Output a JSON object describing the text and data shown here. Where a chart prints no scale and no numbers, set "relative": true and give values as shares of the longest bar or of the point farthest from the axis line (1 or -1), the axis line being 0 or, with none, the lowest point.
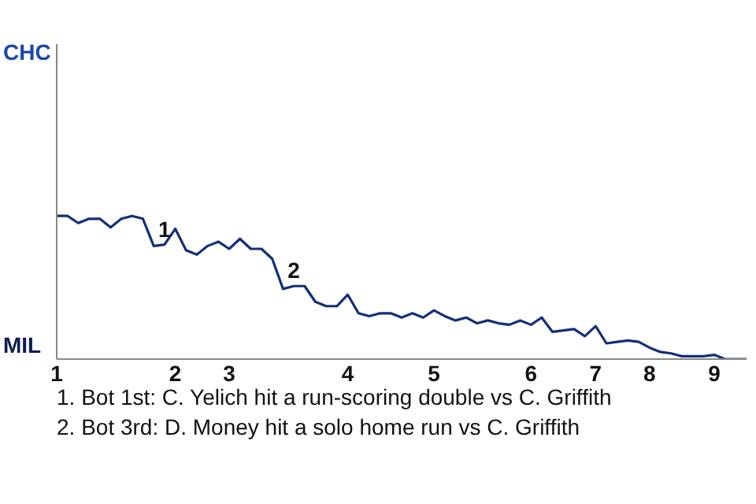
{
  "chart_data": {
    "type": "line",
    "relative": true,
    "categories": [
      "1",
      null,
      null,
      null,
      null,
      null,
      null,
      null,
      null,
      null,
      null,
      "2",
      null,
      null,
      null,
      null,
      "3",
      null,
      null,
      null,
      null,
      null,
      null,
      null,
      null,
      null,
      null,
      "4",
      null,
      null,
      null,
      null,
      null,
      null,
      null,
      "5",
      null,
      null,
      null,
      null,
      null,
      null,
      null,
      null,
      "6",
      null,
      null,
      null,
      null,
      null,
      "7",
      null,
      null,
      null,
      null,
      "8",
      null,
      null,
      null,
      null,
      null,
      "9",
      null,
      null,
      null
    ],
    "series": [
      {
        "color": "#12307a",
        "values": [
          1,
          1,
          0.95,
          0.98,
          0.98,
          0.92,
          0.98,
          1,
          0.98,
          0.79,
          0.8,
          0.91,
          0.76,
          0.73,
          0.79,
          0.82,
          0.77,
          0.84,
          0.77,
          0.77,
          0.7,
          0.49,
          0.51,
          0.51,
          0.4,
          0.37,
          0.37,
          0.45,
          0.32,
          0.3,
          0.32,
          0.32,
          0.29,
          0.32,
          0.29,
          0.34,
          0.3,
          0.27,
          0.29,
          0.25,
          0.27,
          0.25,
          0.24,
          0.27,
          0.24,
          0.29,
          0.19,
          0.2,
          0.21,
          0.16,
          0.23,
          0.11,
          0.12,
          0.13,
          0.12,
          0.08,
          0.05,
          0.04,
          0.02,
          0.02,
          0.02,
          0.03,
          0,
          0,
          0
        ]
      }
    ],
    "marker": "none",
    "line_style": "solid",
    "legend": false,
    "annotations": [
      {
        "text": "1",
        "y": 0.8
      },
      {
        "text": "2",
        "y": 0.51
      },
      "CHC",
      "MIL",
      "1. Bot 1st: C. Yelich hit a run-scoring double vs C. Griffith",
      "2. Bot 3rd: D. Money hit a solo home run vs C. Griffith"
    ]
  }
}
